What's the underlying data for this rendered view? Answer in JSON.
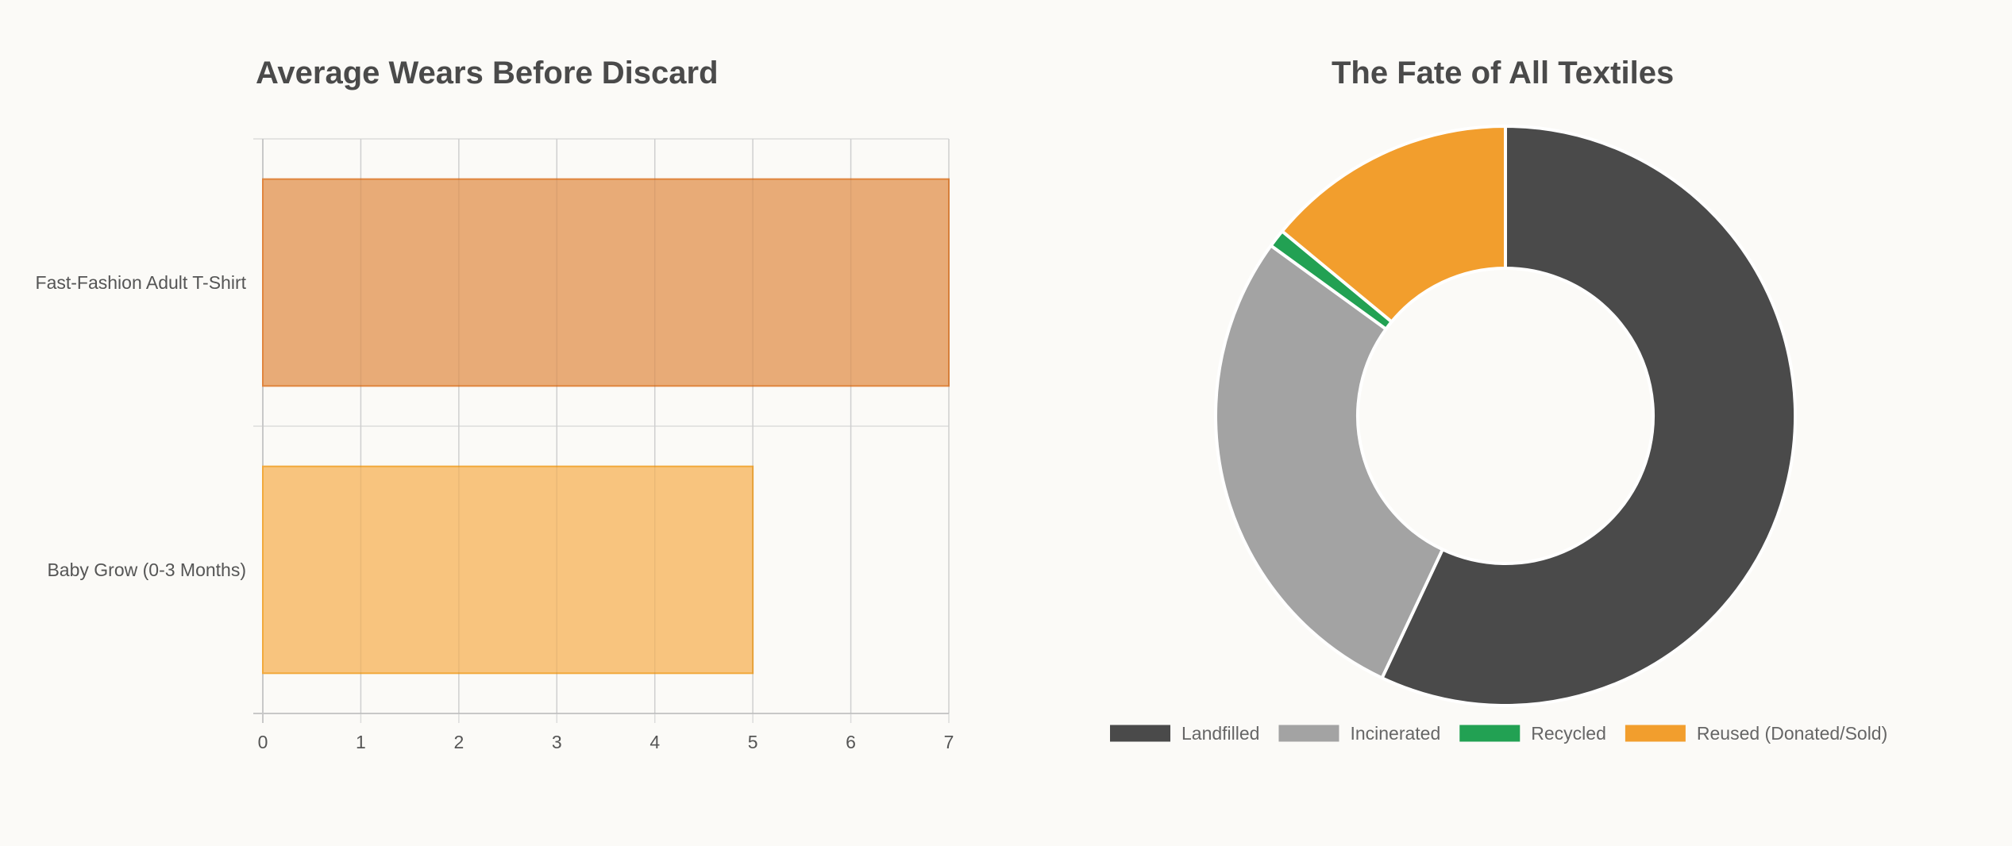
{
  "charts": {
    "bar": {
      "title": "Average Wears Before Discard"
    },
    "pie": {
      "title": "The Fate of All Textiles"
    }
  },
  "chart_data": [
    {
      "type": "bar",
      "orientation": "horizontal",
      "title": "Average Wears Before Discard",
      "categories": [
        "Fast-Fashion Adult T-Shirt",
        "Baby Grow (0-3 Months)"
      ],
      "values": [
        7,
        5
      ],
      "colors": [
        "#e8ab77",
        "#f8c47e"
      ],
      "border_colors": [
        "#e0853e",
        "#f2a93c"
      ],
      "xlim": [
        0,
        7
      ],
      "x_ticks": [
        0,
        1,
        2,
        3,
        4,
        5,
        6,
        7
      ],
      "xlabel": "",
      "ylabel": "",
      "grid": true
    },
    {
      "type": "pie",
      "variant": "doughnut",
      "title": "The Fate of All Textiles",
      "labels": [
        "Landfilled",
        "Incinerated",
        "Recycled",
        "Reused (Donated/Sold)"
      ],
      "values": [
        57,
        28,
        1,
        14
      ],
      "colors": [
        "#4a4a4a",
        "#a3a3a3",
        "#22a153",
        "#f29e2d"
      ],
      "legend_position": "bottom"
    }
  ]
}
